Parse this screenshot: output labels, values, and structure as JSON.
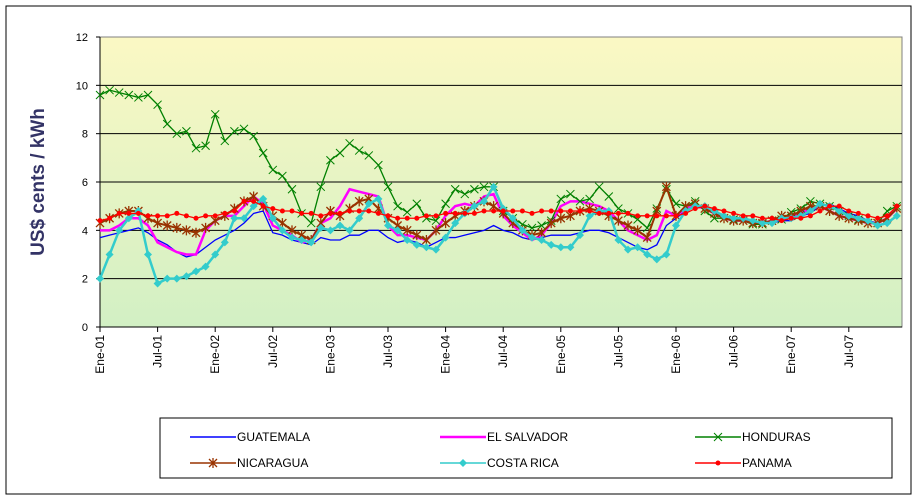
{
  "chart_data": {
    "type": "line",
    "y_label": "US$ cents / kWh",
    "categories": [
      "Ene-01",
      null,
      null,
      null,
      null,
      null,
      "Jul-01",
      null,
      null,
      null,
      null,
      null,
      "Ene-02",
      null,
      null,
      null,
      null,
      null,
      "Jul-02",
      null,
      null,
      null,
      null,
      null,
      "Ene-03",
      null,
      null,
      null,
      null,
      null,
      "Jul-03",
      null,
      null,
      null,
      null,
      null,
      "Ene-04",
      null,
      null,
      null,
      null,
      null,
      "Jul-04",
      null,
      null,
      null,
      null,
      null,
      "Ene-05",
      null,
      null,
      null,
      null,
      null,
      "Jul-05",
      null,
      null,
      null,
      null,
      null,
      "Ene-06",
      null,
      null,
      null,
      null,
      null,
      "Jul-06",
      null,
      null,
      null,
      null,
      null,
      "Ene-07",
      null,
      null,
      null,
      null,
      null,
      "Jul-07",
      null,
      null,
      null,
      null,
      null
    ],
    "ylim": [
      0,
      12
    ],
    "yticks": [
      0,
      2,
      4,
      6,
      8,
      10,
      12
    ],
    "grid": true,
    "series": [
      {
        "name": "GUATEMALA",
        "color": "#0000ff",
        "marker": "none",
        "values": [
          3.7,
          3.8,
          3.9,
          4.0,
          4.1,
          3.9,
          3.6,
          3.4,
          3.1,
          2.9,
          3.0,
          3.3,
          3.6,
          3.8,
          4.0,
          4.3,
          4.7,
          4.8,
          3.9,
          3.8,
          3.6,
          3.5,
          3.4,
          3.7,
          3.6,
          3.6,
          3.8,
          3.8,
          4.0,
          4.0,
          3.7,
          3.5,
          3.6,
          3.5,
          3.3,
          3.5,
          3.7,
          3.7,
          3.8,
          3.9,
          4.0,
          4.2,
          4.0,
          3.9,
          3.7,
          3.6,
          3.7,
          3.8,
          3.8,
          3.8,
          3.9,
          4.0,
          4.0,
          3.9,
          3.7,
          3.5,
          3.3,
          3.2,
          3.4,
          4.2,
          4.5,
          4.8,
          5.0,
          5.0,
          4.8,
          4.6,
          4.5,
          4.5,
          4.4,
          4.3,
          4.3,
          4.4,
          4.4,
          4.6,
          4.7,
          5.0,
          5.1,
          4.9,
          4.7,
          4.6,
          4.4,
          4.3,
          4.5,
          4.9
        ]
      },
      {
        "name": "EL SALVADOR",
        "color": "#ff00ff",
        "marker": "none",
        "values": [
          4.0,
          4.0,
          4.2,
          4.5,
          4.5,
          4.2,
          3.5,
          3.3,
          3.1,
          3.0,
          3.0,
          4.0,
          4.4,
          4.6,
          4.6,
          5.0,
          5.4,
          5.1,
          4.2,
          4.0,
          3.8,
          3.5,
          3.6,
          4.3,
          4.5,
          5.0,
          5.7,
          5.6,
          5.5,
          5.4,
          4.2,
          3.8,
          3.8,
          3.7,
          3.6,
          4.0,
          4.6,
          5.0,
          5.1,
          5.0,
          5.4,
          5.5,
          4.6,
          4.2,
          3.9,
          3.6,
          3.8,
          4.3,
          5.0,
          5.2,
          5.2,
          5.1,
          5.0,
          4.8,
          4.4,
          4.0,
          3.8,
          3.6,
          3.8,
          4.8,
          4.6,
          4.9,
          5.0,
          4.9,
          4.7,
          4.5,
          4.4,
          4.4,
          4.3,
          4.3,
          4.4,
          4.5,
          4.5,
          4.7,
          4.9,
          5.0,
          4.8,
          4.6,
          4.5,
          4.4,
          4.3,
          4.3,
          4.5,
          4.9
        ]
      },
      {
        "name": "HONDURAS",
        "color": "#008000",
        "marker": "x",
        "values": [
          9.6,
          9.8,
          9.7,
          9.6,
          9.5,
          9.6,
          9.2,
          8.4,
          8.0,
          8.1,
          7.4,
          7.5,
          8.8,
          7.7,
          8.1,
          8.2,
          7.9,
          7.2,
          6.5,
          6.25,
          5.7,
          4.7,
          4.3,
          5.8,
          6.9,
          7.2,
          7.6,
          7.3,
          7.1,
          6.7,
          5.8,
          5.0,
          4.75,
          5.1,
          4.5,
          4.4,
          5.1,
          5.7,
          5.5,
          5.7,
          5.8,
          5.8,
          4.8,
          4.5,
          4.25,
          4.1,
          4.2,
          4.4,
          5.3,
          5.5,
          5.2,
          5.3,
          5.8,
          5.4,
          4.9,
          4.7,
          4.45,
          4.1,
          4.9,
          5.7,
          5.1,
          5.0,
          5.2,
          4.8,
          4.5,
          4.5,
          4.45,
          4.4,
          4.25,
          4.25,
          4.4,
          4.45,
          4.75,
          4.9,
          5.2,
          5.1,
          5.0,
          4.8,
          4.6,
          4.45,
          4.3,
          4.3,
          4.8,
          5.0
        ]
      },
      {
        "name": "NICARAGUA",
        "color": "#993300",
        "marker": "star",
        "values": [
          4.3,
          4.5,
          4.7,
          4.8,
          4.8,
          4.5,
          4.3,
          4.2,
          4.1,
          4.0,
          3.9,
          4.1,
          4.4,
          4.6,
          4.9,
          5.2,
          5.4,
          5.0,
          4.6,
          4.3,
          4.0,
          3.8,
          3.6,
          4.3,
          4.8,
          4.6,
          4.9,
          5.2,
          5.3,
          4.9,
          4.5,
          4.2,
          4.0,
          3.8,
          3.6,
          4.0,
          4.3,
          4.6,
          4.8,
          5.0,
          5.2,
          5.0,
          4.7,
          4.3,
          4.0,
          3.8,
          3.9,
          4.3,
          4.5,
          4.6,
          4.8,
          4.9,
          4.8,
          4.6,
          4.4,
          4.2,
          4.0,
          3.7,
          4.8,
          5.8,
          4.6,
          5.0,
          5.1,
          4.9,
          4.7,
          4.5,
          4.4,
          4.4,
          4.3,
          4.3,
          4.4,
          4.6,
          4.6,
          4.8,
          5.0,
          5.0,
          4.8,
          4.6,
          4.5,
          4.4,
          4.3,
          4.3,
          4.5,
          4.9
        ]
      },
      {
        "name": "COSTA RICA",
        "color": "#33cccc",
        "marker": "diamond",
        "values": [
          2.0,
          3.0,
          4.0,
          4.5,
          4.8,
          3.0,
          1.8,
          2.0,
          2.0,
          2.1,
          2.3,
          2.5,
          3.0,
          3.5,
          4.5,
          4.5,
          5.0,
          5.3,
          4.5,
          4.0,
          3.7,
          3.6,
          3.5,
          4.1,
          4.0,
          4.2,
          4.0,
          4.5,
          5.1,
          5.3,
          4.2,
          4.0,
          3.6,
          3.4,
          3.3,
          3.2,
          3.7,
          4.3,
          4.7,
          5.0,
          5.2,
          5.8,
          4.9,
          4.5,
          4.0,
          3.7,
          3.6,
          3.4,
          3.3,
          3.3,
          3.8,
          4.6,
          4.8,
          4.8,
          3.6,
          3.2,
          3.3,
          3.0,
          2.8,
          3.0,
          4.2,
          4.8,
          5.0,
          5.0,
          4.8,
          4.6,
          4.5,
          4.5,
          4.4,
          4.3,
          4.3,
          4.5,
          4.5,
          4.6,
          4.8,
          5.1,
          5.0,
          4.8,
          4.6,
          4.5,
          4.4,
          4.2,
          4.3,
          4.6
        ]
      },
      {
        "name": "PANAMA",
        "color": "#ff0000",
        "marker": "circle",
        "values": [
          4.4,
          4.5,
          4.7,
          4.7,
          4.7,
          4.6,
          4.6,
          4.6,
          4.7,
          4.6,
          4.5,
          4.6,
          4.6,
          4.7,
          4.8,
          5.2,
          5.2,
          5.0,
          4.9,
          4.8,
          4.8,
          4.7,
          4.7,
          4.6,
          4.7,
          4.7,
          4.8,
          4.8,
          4.8,
          4.7,
          4.6,
          4.5,
          4.5,
          4.5,
          4.6,
          4.6,
          4.7,
          4.7,
          4.7,
          4.7,
          4.8,
          4.8,
          4.8,
          4.8,
          4.8,
          4.7,
          4.8,
          4.8,
          4.8,
          4.8,
          4.8,
          4.8,
          4.7,
          4.7,
          4.7,
          4.7,
          4.6,
          4.6,
          4.6,
          4.6,
          4.6,
          4.7,
          4.9,
          5.0,
          4.9,
          4.8,
          4.7,
          4.6,
          4.6,
          4.5,
          4.5,
          4.4,
          4.5,
          4.5,
          4.6,
          4.8,
          5.0,
          5.0,
          4.8,
          4.7,
          4.6,
          4.5,
          4.6,
          5.0
        ]
      }
    ]
  }
}
